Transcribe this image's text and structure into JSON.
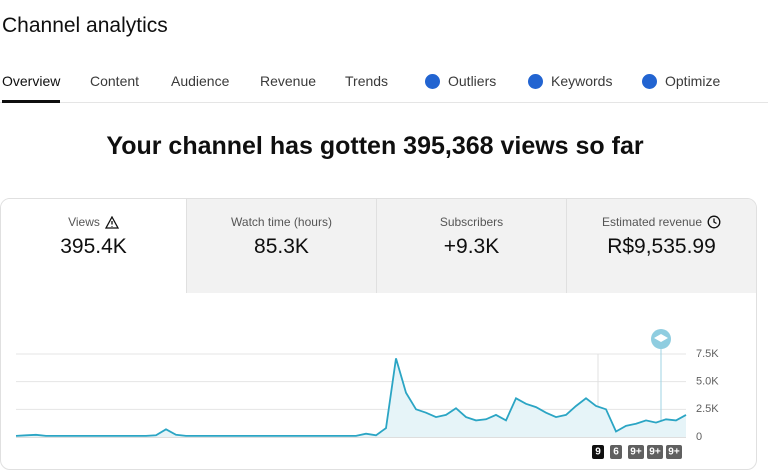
{
  "header": {
    "title": "Channel analytics"
  },
  "tabs": [
    "Overview",
    "Content",
    "Audience",
    "Revenue",
    "Trends",
    "Outliers",
    "Keywords",
    "Optimize"
  ],
  "headline": "Your channel has gotten 395,368 views so far",
  "metrics": [
    {
      "label": "Views",
      "value": "395.4K"
    },
    {
      "label": "Watch time (hours)",
      "value": "85.3K"
    },
    {
      "label": "Subscribers",
      "value": "+9.3K"
    },
    {
      "label": "Estimated revenue",
      "value": "R$9,535.99"
    }
  ],
  "chart_data": {
    "type": "line",
    "color": "#2ba5c4",
    "values": [
      100,
      150,
      200,
      100,
      100,
      100,
      100,
      100,
      100,
      100,
      100,
      100,
      100,
      100,
      150,
      700,
      200,
      100,
      100,
      100,
      100,
      100,
      100,
      100,
      100,
      100,
      100,
      100,
      100,
      100,
      100,
      100,
      100,
      100,
      100,
      300,
      150,
      800,
      7100,
      4000,
      2500,
      2200,
      1800,
      2000,
      2600,
      1800,
      1500,
      1600,
      2000,
      1500,
      3500,
      3000,
      2700,
      2200,
      1800,
      2000,
      2800,
      3500,
      2800,
      2500,
      500,
      1000,
      1200,
      1500,
      1300,
      1600,
      1500,
      2000
    ],
    "ylim": [
      0,
      7500
    ],
    "yticks": [
      0,
      {
        "value": 2500,
        "label": "2.5K"
      },
      {
        "value": 5000,
        "label": "5.0K"
      },
      {
        "value": 7500,
        "label": "7.5K"
      }
    ],
    "grid": true
  },
  "badges": [
    "9",
    "6",
    "9+",
    "9+",
    "9+"
  ]
}
